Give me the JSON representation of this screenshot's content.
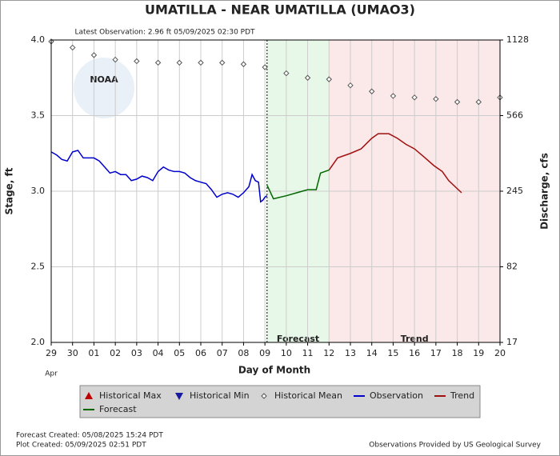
{
  "chart_data": {
    "type": "line",
    "title": "UMATILLA - NEAR UMATILLA  (UMAO3)",
    "subtitle": "Latest Observation: 2.96 ft 05/09/2025 02:30 PDT",
    "logo_text": "NOAA",
    "x_label": "Day of Month",
    "x_note": "Apr",
    "y_label": "Stage, ft",
    "y2_label": "Discharge, cfs",
    "xlim": [
      0,
      21
    ],
    "xticks": [
      {
        "value": 0,
        "label": "29"
      },
      {
        "value": 1,
        "label": "30"
      },
      {
        "value": 2,
        "label": "01"
      },
      {
        "value": 3,
        "label": "02"
      },
      {
        "value": 4,
        "label": "03"
      },
      {
        "value": 5,
        "label": "04"
      },
      {
        "value": 6,
        "label": "05"
      },
      {
        "value": 7,
        "label": "06"
      },
      {
        "value": 8,
        "label": "07"
      },
      {
        "value": 9,
        "label": "08"
      },
      {
        "value": 10,
        "label": "09"
      },
      {
        "value": 11,
        "label": "10"
      },
      {
        "value": 12,
        "label": "11"
      },
      {
        "value": 13,
        "label": "12"
      },
      {
        "value": 14,
        "label": "13"
      },
      {
        "value": 15,
        "label": "14"
      },
      {
        "value": 16,
        "label": "15"
      },
      {
        "value": 17,
        "label": "16"
      },
      {
        "value": 18,
        "label": "17"
      },
      {
        "value": 19,
        "label": "18"
      },
      {
        "value": 20,
        "label": "19"
      },
      {
        "value": 21,
        "label": "20"
      }
    ],
    "ylim": [
      2.0,
      4.0
    ],
    "yticks": [
      {
        "value": 2,
        "label": "2.0"
      },
      2.5,
      {
        "value": 3,
        "label": "3.0"
      },
      3.5,
      {
        "value": 4,
        "label": "4.0"
      }
    ],
    "y2ticks": [
      17,
      82,
      245,
      566,
      1128
    ],
    "grid": true,
    "regions": [
      {
        "label": "Forecast",
        "start": 10.1,
        "end": 13,
        "color": "#e8f8e8"
      },
      {
        "label": "Trend",
        "start": 13,
        "end": 21,
        "color": "#fbe8e8"
      }
    ],
    "series": [
      {
        "name": "Historical Max",
        "color": "#c00000",
        "symbol": "triangle-up",
        "x": [],
        "values": []
      },
      {
        "name": "Historical Min",
        "color": "#1a1aa0",
        "symbol": "triangle-down",
        "x": [],
        "values": []
      },
      {
        "name": "Historical Mean",
        "color": "#555555",
        "symbol": "diamond",
        "x": [
          0,
          1,
          2,
          3,
          4,
          5,
          6,
          7,
          8,
          9,
          10,
          11,
          12,
          13,
          14,
          15,
          16,
          17,
          18,
          19,
          20,
          21
        ],
        "values": [
          3.99,
          3.95,
          3.9,
          3.87,
          3.86,
          3.85,
          3.85,
          3.85,
          3.85,
          3.84,
          3.82,
          3.78,
          3.75,
          3.74,
          3.7,
          3.66,
          3.63,
          3.62,
          3.61,
          3.59,
          3.59,
          3.62
        ]
      },
      {
        "name": "Observation",
        "color": "#0000cc",
        "symbol": "line",
        "x": [
          0,
          0.25,
          0.5,
          0.75,
          1,
          1.25,
          1.5,
          1.75,
          2,
          2.25,
          2.5,
          2.75,
          3,
          3.25,
          3.5,
          3.75,
          4,
          4.25,
          4.5,
          4.75,
          5,
          5.25,
          5.5,
          5.75,
          6,
          6.25,
          6.5,
          6.75,
          7,
          7.25,
          7.5,
          7.75,
          8,
          8.25,
          8.5,
          8.75,
          9,
          9.25,
          9.4,
          9.55,
          9.7,
          9.8,
          9.9,
          10.0,
          10.1
        ],
        "values": [
          3.26,
          3.24,
          3.21,
          3.2,
          3.26,
          3.27,
          3.22,
          3.22,
          3.22,
          3.2,
          3.16,
          3.12,
          3.13,
          3.11,
          3.11,
          3.07,
          3.08,
          3.1,
          3.09,
          3.07,
          3.13,
          3.16,
          3.14,
          3.13,
          3.13,
          3.12,
          3.09,
          3.07,
          3.06,
          3.05,
          3.01,
          2.96,
          2.98,
          2.99,
          2.98,
          2.96,
          2.99,
          3.03,
          3.11,
          3.07,
          3.06,
          2.93,
          2.94,
          2.96,
          2.97
        ]
      },
      {
        "name": "Trend",
        "color": "#a01010",
        "symbol": "line",
        "x": [
          13,
          13.4,
          14,
          14.5,
          15,
          15.3,
          15.8,
          16.2,
          16.6,
          17,
          17.5,
          17.9,
          18.3,
          18.6,
          19.2
        ],
        "values": [
          3.14,
          3.22,
          3.25,
          3.28,
          3.35,
          3.38,
          3.38,
          3.35,
          3.31,
          3.28,
          3.22,
          3.17,
          3.13,
          3.07,
          2.99
        ]
      },
      {
        "name": "Forecast",
        "color": "#006600",
        "symbol": "line",
        "x": [
          10.1,
          10.4,
          11,
          11.5,
          12,
          12.4,
          12.6,
          13
        ],
        "values": [
          3.04,
          2.95,
          2.97,
          2.99,
          3.01,
          3.01,
          3.12,
          3.14
        ]
      }
    ],
    "footer_left": [
      "Forecast Created: 05/08/2025 15:24 PDT",
      "Plot Created: 05/09/2025 02:51 PDT"
    ],
    "footer_right": "Observations Provided by US Geological Survey"
  }
}
